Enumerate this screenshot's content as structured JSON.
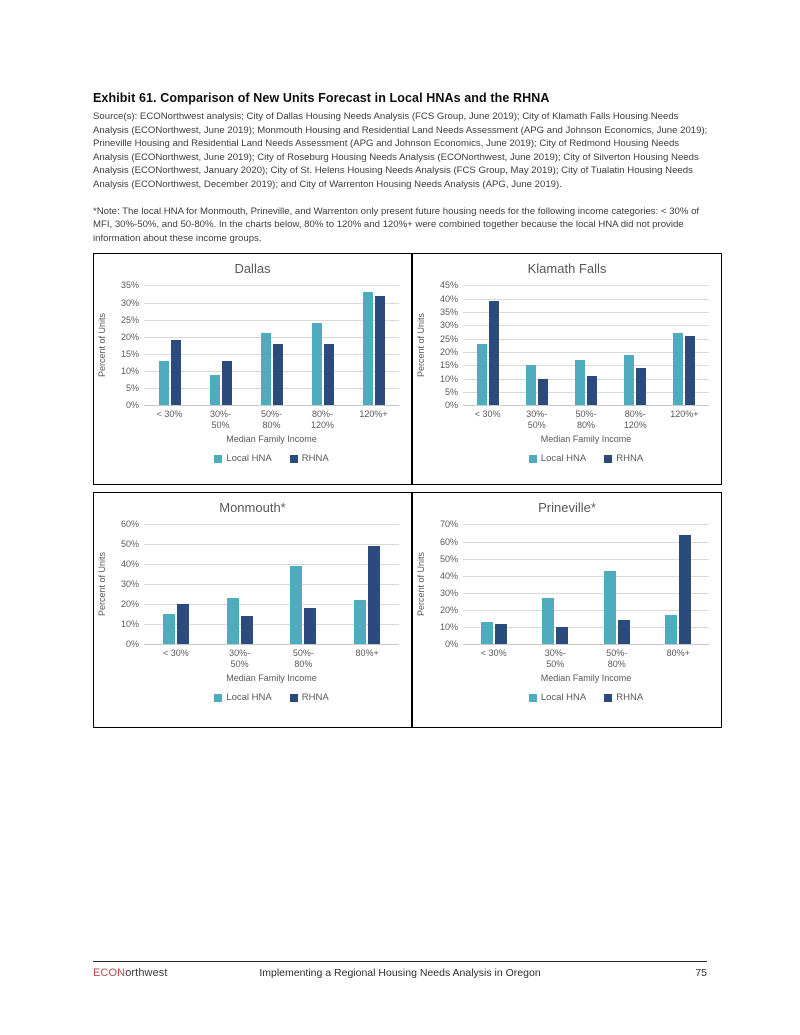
{
  "page": {
    "exhibit_title": "Exhibit 61. Comparison of New Units Forecast in Local HNAs and the RHNA",
    "source": "Source(s): ECONorthwest analysis; City of Dallas Housing Needs Analysis (FCS Group, June 2019); City of Klamath Falls Housing Needs Analysis (ECONorthwest, June 2019); Monmouth Housing and Residential Land Needs Assessment (APG and Johnson Economics, June 2019); Prineville Housing and Residential Land Needs Assessment (APG and Johnson Economics, June 2019); City of Redmond Housing Needs Analysis (ECONorthwest, June 2019); City of Roseburg Housing Needs Analysis (ECONorthwest, June 2019); City of Silverton Housing Needs Analysis (ECONorthwest, January 2020); City of St. Helens Housing Needs Analysis (FCS Group, May 2019); City of Tualatin Housing Needs Analysis (ECONorthwest, December 2019); and City of Warrenton Housing Needs Analysis (APG, June 2019).",
    "note": "*Note: The local HNA for Monmouth, Prineville, and Warrenton only present future housing needs for the following income categories: < 30% of MFI, 30%-50%, and 50-80%. In the charts below, 80% to 120% and 120%+ were combined together because the local HNA did not provide information about these income groups."
  },
  "legend": {
    "local": "Local HNA",
    "rhna": "RHNA"
  },
  "colors": {
    "local_hna": "#4facbe",
    "rhna": "#2a4b7c",
    "gridline": "#d9d9d9",
    "axis_text": "#595959",
    "logo_red": "#c2474e"
  },
  "chart_data": [
    {
      "type": "bar",
      "title": "Dallas",
      "xlabel": "Median Family Income",
      "ylabel": "Percent of Units",
      "ylim": [
        0,
        35
      ],
      "ytick_step": 5,
      "grid": true,
      "legend_position": "bottom",
      "categories": [
        "< 30%",
        "30%-\n50%",
        "50%-\n80%",
        "80%-\n120%",
        "120%+"
      ],
      "series": [
        {
          "name": "Local HNA",
          "values": [
            13,
            9,
            21,
            24,
            33
          ]
        },
        {
          "name": "RHNA",
          "values": [
            19,
            13,
            18,
            18,
            32
          ]
        }
      ]
    },
    {
      "type": "bar",
      "title": "Klamath Falls",
      "xlabel": "Median Family Income",
      "ylabel": "Percent of Units",
      "ylim": [
        0,
        45
      ],
      "ytick_step": 5,
      "grid": true,
      "legend_position": "bottom",
      "categories": [
        "< 30%",
        "30%-\n50%",
        "50%-\n80%",
        "80%-\n120%",
        "120%+"
      ],
      "series": [
        {
          "name": "Local HNA",
          "values": [
            23,
            15,
            17,
            19,
            27
          ]
        },
        {
          "name": "RHNA",
          "values": [
            39,
            10,
            11,
            14,
            26
          ]
        }
      ]
    },
    {
      "type": "bar",
      "title": "Monmouth*",
      "xlabel": "Median Family Income",
      "ylabel": "Percent of Units",
      "ylim": [
        0,
        60
      ],
      "ytick_step": 10,
      "grid": true,
      "legend_position": "bottom",
      "categories": [
        "< 30%",
        "30%-\n50%",
        "50%-\n80%",
        "80%+"
      ],
      "series": [
        {
          "name": "Local HNA",
          "values": [
            15,
            23,
            39,
            22
          ]
        },
        {
          "name": "RHNA",
          "values": [
            20,
            14,
            18,
            49
          ]
        }
      ]
    },
    {
      "type": "bar",
      "title": "Prineville*",
      "xlabel": "Median Family Income",
      "ylabel": "Percent of Units",
      "ylim": [
        0,
        70
      ],
      "ytick_step": 10,
      "grid": true,
      "legend_position": "bottom",
      "categories": [
        "< 30%",
        "30%-\n50%",
        "50%-\n80%",
        "80%+"
      ],
      "series": [
        {
          "name": "Local HNA",
          "values": [
            13,
            27,
            43,
            17
          ]
        },
        {
          "name": "RHNA",
          "values": [
            12,
            10,
            14,
            64
          ]
        }
      ]
    }
  ],
  "footer": {
    "logo_red": "ECON",
    "logo_dark": "orthwest",
    "center": "Implementing a Regional Housing Needs Analysis in Oregon",
    "page_number": "75"
  }
}
